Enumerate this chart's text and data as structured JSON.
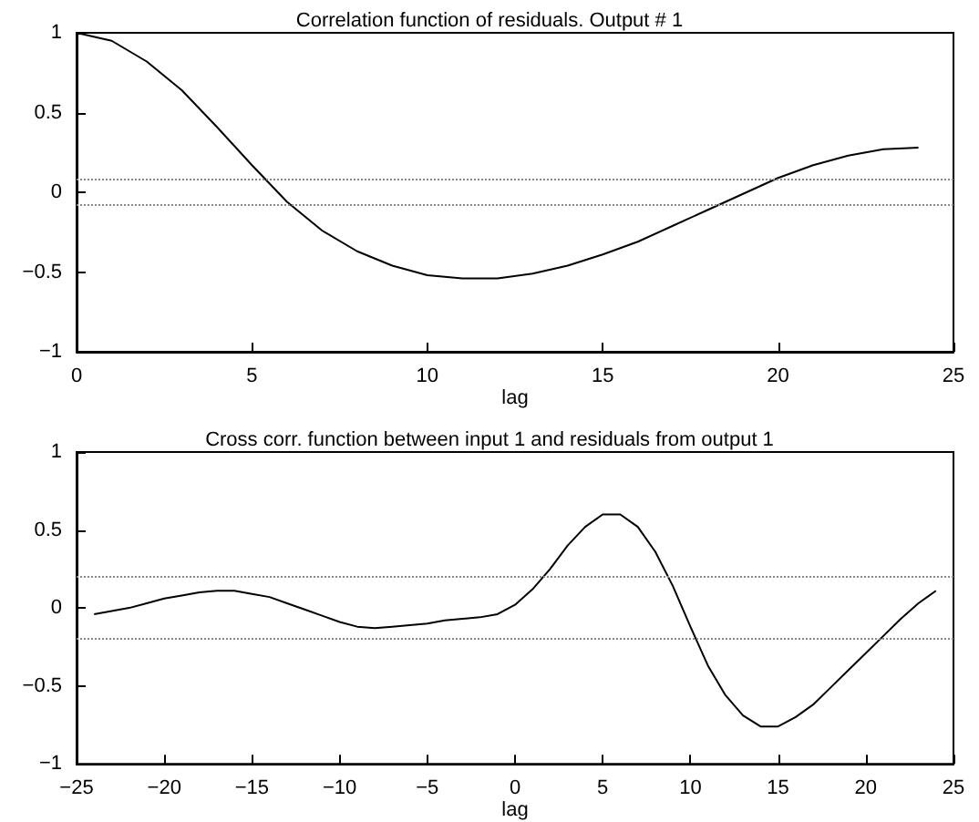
{
  "chart_data": [
    {
      "type": "line",
      "title": "Correlation function of residuals. Output # 1",
      "xlabel": "lag",
      "x": [
        0,
        1,
        2,
        3,
        4,
        5,
        6,
        7,
        8,
        9,
        10,
        11,
        12,
        13,
        14,
        15,
        16,
        17,
        18,
        19,
        20,
        21,
        22,
        23,
        24
      ],
      "series": [
        {
          "color": "#000000",
          "values": [
            1,
            0.95,
            0.82,
            0.64,
            0.41,
            0.17,
            -0.06,
            -0.24,
            -0.37,
            -0.46,
            -0.52,
            -0.54,
            -0.54,
            -0.51,
            -0.46,
            -0.39,
            -0.31,
            -0.21,
            -0.11,
            -0.01,
            0.09,
            0.17,
            0.23,
            0.27,
            0.28
          ]
        }
      ],
      "xlim": [
        0,
        25
      ],
      "xticks": [
        0,
        5,
        10,
        15,
        20,
        25
      ],
      "ylim": [
        -1,
        1
      ],
      "yticks": [
        -1,
        -0.5,
        0,
        0.5,
        1
      ],
      "grid": false,
      "marker": "none",
      "line_style": "solid",
      "ref_lines": [
        {
          "axis": "y",
          "value": 0.08,
          "color": "#888888",
          "line_style": "dotted"
        },
        {
          "axis": "y",
          "value": -0.08,
          "color": "#888888",
          "line_style": "dotted"
        }
      ]
    },
    {
      "type": "line",
      "title": "Cross corr. function between input 1 and residuals from output 1",
      "xlabel": "lag",
      "x": [
        -24,
        -23,
        -22,
        -21,
        -20,
        -19,
        -18,
        -17,
        -16,
        -15,
        -14,
        -13,
        -12,
        -11,
        -10,
        -9,
        -8,
        -7,
        -6,
        -5,
        -4,
        -3,
        -2,
        -1,
        0,
        1,
        2,
        3,
        4,
        5,
        6,
        7,
        8,
        9,
        10,
        11,
        12,
        13,
        14,
        15,
        16,
        17,
        18,
        19,
        20,
        21,
        22,
        23,
        24
      ],
      "series": [
        {
          "color": "#000000",
          "values": [
            -0.04,
            -0.02,
            0.0,
            0.03,
            0.06,
            0.08,
            0.1,
            0.11,
            0.11,
            0.09,
            0.07,
            0.03,
            -0.01,
            -0.05,
            -0.09,
            -0.12,
            -0.13,
            -0.12,
            -0.11,
            -0.1,
            -0.08,
            -0.07,
            -0.06,
            -0.04,
            0.02,
            0.12,
            0.25,
            0.4,
            0.52,
            0.6,
            0.6,
            0.52,
            0.36,
            0.14,
            -0.12,
            -0.37,
            -0.56,
            -0.69,
            -0.76,
            -0.76,
            -0.7,
            -0.62,
            -0.51,
            -0.4,
            -0.29,
            -0.18,
            -0.07,
            0.03,
            0.11
          ]
        }
      ],
      "xlim": [
        -25,
        25
      ],
      "xticks": [
        -25,
        -20,
        -15,
        -10,
        -5,
        0,
        5,
        10,
        15,
        20,
        25
      ],
      "ylim": [
        -1,
        1
      ],
      "yticks": [
        -1,
        -0.5,
        0,
        0.5,
        1
      ],
      "grid": false,
      "marker": "none",
      "line_style": "solid",
      "ref_lines": [
        {
          "axis": "y",
          "value": 0.2,
          "color": "#888888",
          "line_style": "dotted"
        },
        {
          "axis": "y",
          "value": -0.2,
          "color": "#888888",
          "line_style": "dotted"
        }
      ]
    }
  ]
}
